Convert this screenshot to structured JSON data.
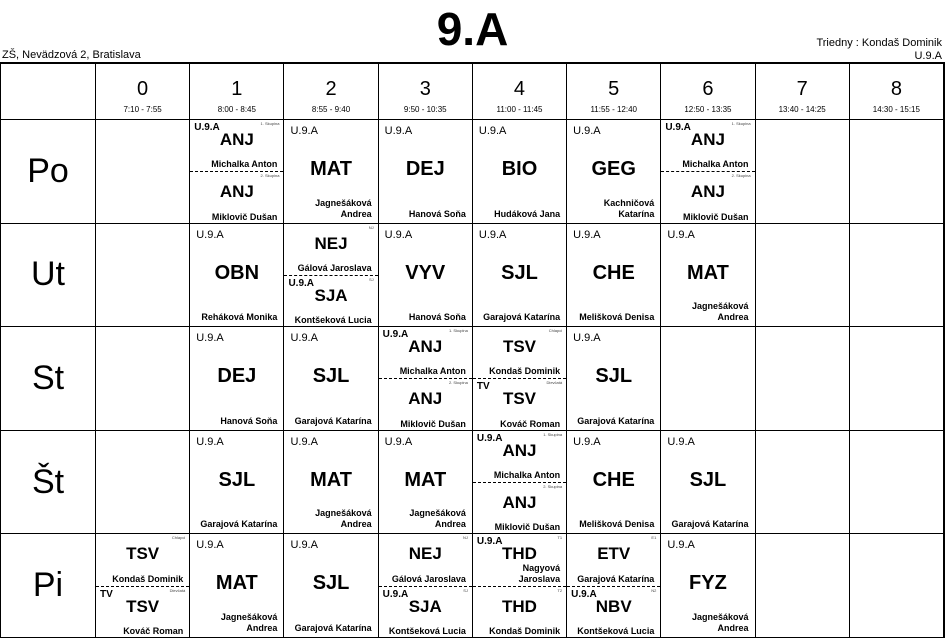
{
  "title": "9.A",
  "school": "ZŠ, Nevädzová 2, Bratislava",
  "homeroom_teacher": "Triedny : Kondaš Dominik",
  "homeroom_room": "U.9.A",
  "periods": [
    {
      "num": "0",
      "time": "7:10 - 7:55"
    },
    {
      "num": "1",
      "time": "8:00 - 8:45"
    },
    {
      "num": "2",
      "time": "8:55 - 9:40"
    },
    {
      "num": "3",
      "time": "9:50 - 10:35"
    },
    {
      "num": "4",
      "time": "11:00 - 11:45"
    },
    {
      "num": "5",
      "time": "11:55 - 12:40"
    },
    {
      "num": "6",
      "time": "12:50 - 13:35"
    },
    {
      "num": "7",
      "time": "13:40 - 14:25"
    },
    {
      "num": "8",
      "time": "14:30 - 15:15"
    }
  ],
  "days": [
    {
      "label": "Po",
      "cells": [
        null,
        [
          {
            "tag": "1. Skupina",
            "room": "U.9.A",
            "subject": "ANJ",
            "teacher": "Michalka Anton"
          },
          {
            "tag": "2. Skupina",
            "room": "",
            "subject": "ANJ",
            "teacher": "Miklovič Dušan"
          }
        ],
        {
          "room": "U.9.A",
          "subject": "MAT",
          "teacher": "Jagnešáková\nAndrea"
        },
        {
          "room": "U.9.A",
          "subject": "DEJ",
          "teacher": "Hanová Soňa"
        },
        {
          "room": "U.9.A",
          "subject": "BIO",
          "teacher": "Hudáková Jana"
        },
        {
          "room": "U.9.A",
          "subject": "GEG",
          "teacher": "Kachničová Katarína"
        },
        [
          {
            "tag": "1. Skupina",
            "room": "U.9.A",
            "subject": "ANJ",
            "teacher": "Michalka Anton"
          },
          {
            "tag": "2. Skupina",
            "room": "",
            "subject": "ANJ",
            "teacher": "Miklovič Dušan"
          }
        ],
        null,
        null
      ]
    },
    {
      "label": "Ut",
      "cells": [
        null,
        {
          "room": "U.9.A",
          "subject": "OBN",
          "teacher": "Reháková Monika"
        },
        [
          {
            "tag": "NJ",
            "room": "",
            "subject": "NEJ",
            "teacher": "Gálová Jaroslava"
          },
          {
            "tag": "SJ",
            "room": "U.9.A",
            "subject": "SJA",
            "teacher": "Kontšeková Lucia"
          }
        ],
        {
          "room": "U.9.A",
          "subject": "VYV",
          "teacher": "Hanová Soňa"
        },
        {
          "room": "U.9.A",
          "subject": "SJL",
          "teacher": "Garajová Katarína"
        },
        {
          "room": "U.9.A",
          "subject": "CHE",
          "teacher": "Melišková Denisa"
        },
        {
          "room": "U.9.A",
          "subject": "MAT",
          "teacher": "Jagnešáková\nAndrea"
        },
        null,
        null
      ]
    },
    {
      "label": "St",
      "cells": [
        null,
        {
          "room": "U.9.A",
          "subject": "DEJ",
          "teacher": "Hanová Soňa"
        },
        {
          "room": "U.9.A",
          "subject": "SJL",
          "teacher": "Garajová Katarína"
        },
        [
          {
            "tag": "1. Skupina",
            "room": "U.9.A",
            "subject": "ANJ",
            "teacher": "Michalka Anton"
          },
          {
            "tag": "2. Skupina",
            "room": "",
            "subject": "ANJ",
            "teacher": "Miklovič Dušan"
          }
        ],
        [
          {
            "tag": "Chlapci",
            "room": "",
            "subject": "TSV",
            "teacher": "Kondaš Dominik"
          },
          {
            "tag": "Dievčatá",
            "room": "TV",
            "subject": "TSV",
            "teacher": "Kováč Roman"
          }
        ],
        {
          "room": "U.9.A",
          "subject": "SJL",
          "teacher": "Garajová Katarína"
        },
        null,
        null,
        null
      ]
    },
    {
      "label": "Št",
      "cells": [
        null,
        {
          "room": "U.9.A",
          "subject": "SJL",
          "teacher": "Garajová Katarína"
        },
        {
          "room": "U.9.A",
          "subject": "MAT",
          "teacher": "Jagnešáková\nAndrea"
        },
        {
          "room": "U.9.A",
          "subject": "MAT",
          "teacher": "Jagnešáková\nAndrea"
        },
        [
          {
            "tag": "1. Skupina",
            "room": "U.9.A",
            "subject": "ANJ",
            "teacher": "Michalka Anton"
          },
          {
            "tag": "2. Skupina",
            "room": "",
            "subject": "ANJ",
            "teacher": "Miklovič Dušan"
          }
        ],
        {
          "room": "U.9.A",
          "subject": "CHE",
          "teacher": "Melišková Denisa"
        },
        {
          "room": "U.9.A",
          "subject": "SJL",
          "teacher": "Garajová Katarína"
        },
        null,
        null
      ]
    },
    {
      "label": "Pi",
      "cells": [
        [
          {
            "tag": "Chlapci",
            "room": "",
            "subject": "TSV",
            "teacher": "Kondaš Dominik"
          },
          {
            "tag": "Dievčatá",
            "room": "TV",
            "subject": "TSV",
            "teacher": "Kováč Roman"
          }
        ],
        {
          "room": "U.9.A",
          "subject": "MAT",
          "teacher": "Jagnešáková\nAndrea"
        },
        {
          "room": "U.9.A",
          "subject": "SJL",
          "teacher": "Garajová Katarína"
        },
        [
          {
            "tag": "NJ",
            "room": "",
            "subject": "NEJ",
            "teacher": "Gálová Jaroslava"
          },
          {
            "tag": "SJ",
            "room": "U.9.A",
            "subject": "SJA",
            "teacher": "Kontšeková Lucia"
          }
        ],
        [
          {
            "tag": "T1",
            "room": "U.9.A",
            "subject": "THD",
            "teacher": "Nagyová\nJaroslava"
          },
          {
            "tag": "T2",
            "room": "",
            "subject": "THD",
            "teacher": "Kondaš Dominik"
          }
        ],
        [
          {
            "tag": "E1",
            "room": "",
            "subject": "ETV",
            "teacher": "Garajová Katarína"
          },
          {
            "tag": "N2",
            "room": "U.9.A",
            "subject": "NBV",
            "teacher": "Kontšeková Lucia"
          }
        ],
        {
          "room": "U.9.A",
          "subject": "FYZ",
          "teacher": "Jagnešáková\nAndrea"
        },
        null,
        null
      ]
    }
  ]
}
